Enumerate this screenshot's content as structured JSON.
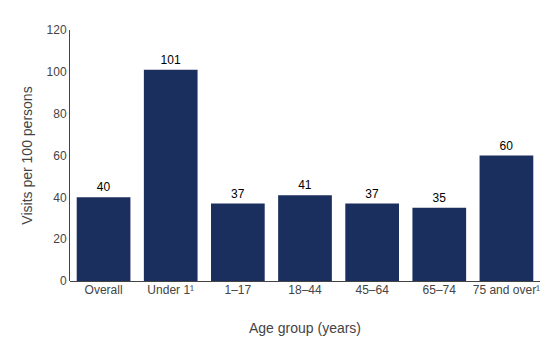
{
  "chart_data": {
    "type": "bar",
    "categories": [
      "Overall",
      "Under 1¹",
      "1–17",
      "18–44",
      "45–64",
      "65–74",
      "75 and over¹"
    ],
    "values": [
      40,
      101,
      37,
      41,
      37,
      35,
      60
    ],
    "color": "#1b2f5e",
    "xlabel": "Age group (years)",
    "ylabel": "Visits per 100 persons",
    "ylim": [
      0,
      120
    ],
    "yticks": [
      0,
      20,
      40,
      60,
      80,
      100,
      120
    ],
    "grid": false,
    "data_labels": true
  }
}
